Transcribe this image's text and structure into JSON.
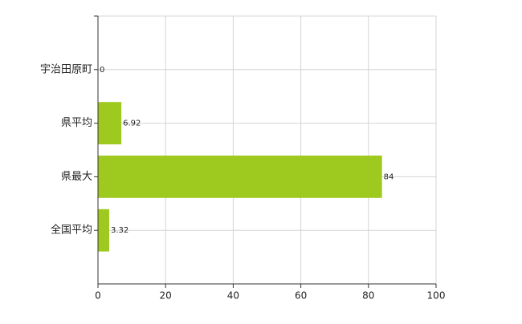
{
  "chart_data": {
    "type": "bar",
    "orientation": "horizontal",
    "categories": [
      "宇治田原町",
      "県平均",
      "県最大",
      "全国平均"
    ],
    "values": [
      0,
      6.92,
      84,
      3.32
    ],
    "color": "#9ec91e",
    "xlim": [
      0,
      100
    ],
    "xticks": [
      0,
      20,
      40,
      60,
      80,
      100
    ],
    "grid": true
  }
}
